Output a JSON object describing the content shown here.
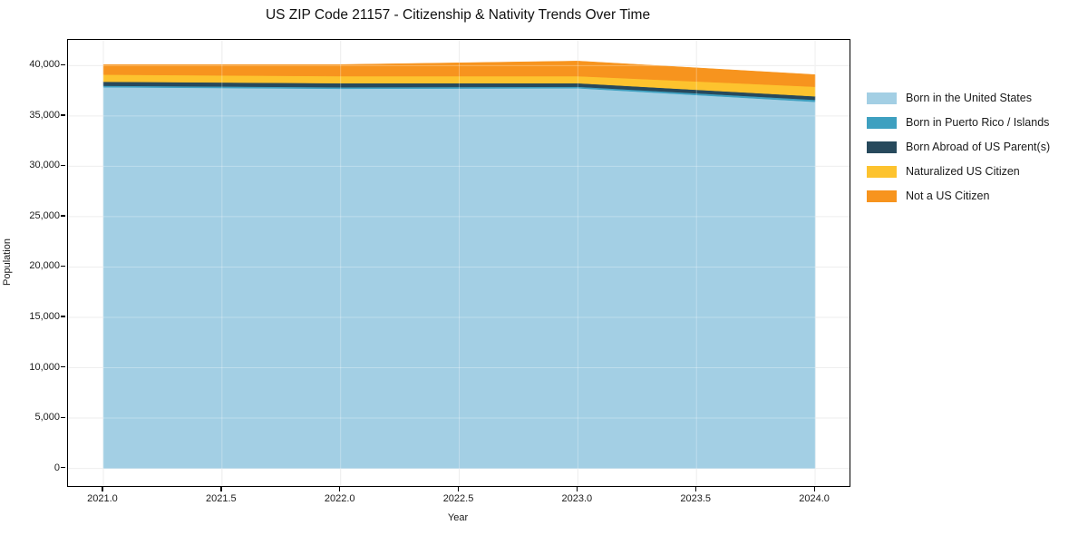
{
  "chart_data": {
    "type": "area",
    "title": "US ZIP Code 21157 - Citizenship & Nativity Trends Over Time",
    "xlabel": "Year",
    "ylabel": "Population",
    "x": [
      2021,
      2022,
      2023,
      2024
    ],
    "series": [
      {
        "name": "Born in the United States",
        "color": "#A3CFE4",
        "values": [
          37850,
          37700,
          37750,
          36400
        ]
      },
      {
        "name": "Born in Puerto Rico / Islands",
        "color": "#3EA0C0",
        "values": [
          150,
          150,
          150,
          200
        ]
      },
      {
        "name": "Born Abroad of US Parent(s)",
        "color": "#27495C",
        "values": [
          400,
          400,
          350,
          350
        ]
      },
      {
        "name": "Naturalized US Citizen",
        "color": "#FDC32E",
        "values": [
          700,
          700,
          700,
          950
        ]
      },
      {
        "name": "Not a US Citizen",
        "color": "#F7941E",
        "values": [
          1000,
          1150,
          1500,
          1200
        ]
      }
    ],
    "stacked": true,
    "grid": true,
    "grid_color": "#e7e7e7",
    "legend_position": "right",
    "xlim": [
      2020.851,
      2024.145
    ],
    "ylim": [
      -1750,
      42550
    ],
    "xticks": [
      {
        "v": 2021.0,
        "label": "2021.0"
      },
      {
        "v": 2021.5,
        "label": "2021.5"
      },
      {
        "v": 2022.0,
        "label": "2022.0"
      },
      {
        "v": 2022.5,
        "label": "2022.5"
      },
      {
        "v": 2023.0,
        "label": "2023.0"
      },
      {
        "v": 2023.5,
        "label": "2023.5"
      },
      {
        "v": 2024.0,
        "label": "2024.0"
      }
    ],
    "yticks": [
      {
        "v": 0,
        "label": "0"
      },
      {
        "v": 5000,
        "label": "5,000"
      },
      {
        "v": 10000,
        "label": "10,000"
      },
      {
        "v": 15000,
        "label": "15,000"
      },
      {
        "v": 20000,
        "label": "20,000"
      },
      {
        "v": 25000,
        "label": "25,000"
      },
      {
        "v": 30000,
        "label": "30,000"
      },
      {
        "v": 35000,
        "label": "35,000"
      },
      {
        "v": 40000,
        "label": "40,000"
      }
    ]
  }
}
